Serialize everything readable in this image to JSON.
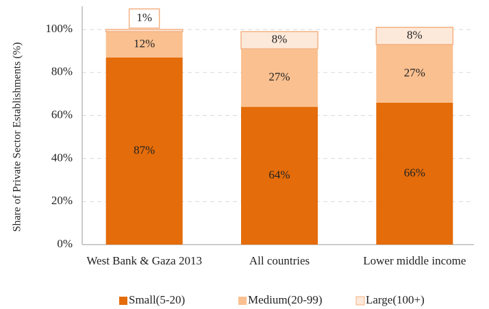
{
  "chart_data": {
    "type": "stacked_bar",
    "y_label": "Share of Private Sector Establishments (%)",
    "categories": [
      "West Bank & Gaza 2013",
      "All countries",
      "Lower middle income"
    ],
    "series": [
      {
        "name": "Small(5-20)",
        "color": "#e46c0a",
        "values": [
          87,
          64,
          66
        ],
        "value_labels": [
          "87%",
          "64%",
          "66%"
        ]
      },
      {
        "name": "Medium(20-99)",
        "color": "#fac090",
        "values": [
          12,
          27,
          27
        ],
        "value_labels": [
          "12%",
          "27%",
          "27%"
        ]
      },
      {
        "name": "Large(100+)",
        "color": "#fde9d9",
        "values": [
          1,
          8,
          8
        ],
        "value_labels": [
          "1%",
          "8%",
          "8%"
        ]
      }
    ],
    "ylim": [
      0,
      100
    ],
    "yticks": [
      {
        "value": 0,
        "label": "0%"
      },
      {
        "value": 20,
        "label": "20%"
      },
      {
        "value": 40,
        "label": "40%"
      },
      {
        "value": 60,
        "label": "60%"
      },
      {
        "value": 80,
        "label": "80%"
      },
      {
        "value": 100,
        "label": "100%"
      }
    ],
    "grid": true,
    "legend": "bottom"
  }
}
